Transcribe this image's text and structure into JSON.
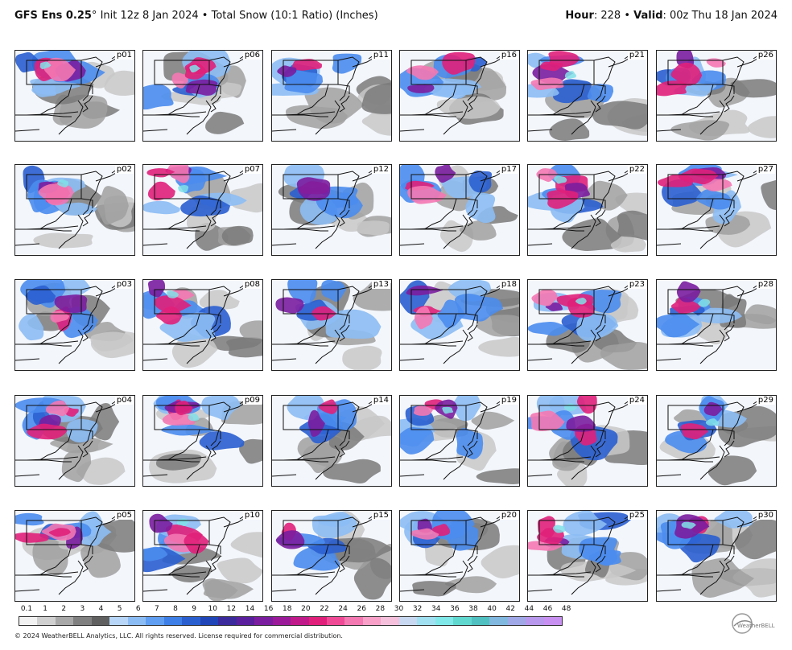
{
  "header": {
    "model": "GFS Ens 0.25",
    "degree": "°",
    "init": "Init 12z 8 Jan 2024",
    "bullet": "•",
    "product": "Total Snow (10:1 Ratio) (Inches)",
    "hour_label": "Hour",
    "hour_value": ": 228",
    "valid_label": "Valid",
    "valid_value": ": 00z Thu 18 Jan 2024"
  },
  "panels": [
    [
      "p01",
      "p06",
      "p11",
      "p16",
      "p21",
      "p26"
    ],
    [
      "p02",
      "p07",
      "p12",
      "p17",
      "p22",
      "p27"
    ],
    [
      "p03",
      "p08",
      "p13",
      "p18",
      "p23",
      "p28"
    ],
    [
      "p04",
      "p09",
      "p14",
      "p19",
      "p24",
      "p29"
    ],
    [
      "p05",
      "p10",
      "p15",
      "p20",
      "p25",
      "p30"
    ]
  ],
  "colorbar": {
    "ticks": [
      "0.1",
      "1",
      "2",
      "3",
      "4",
      "5",
      "6",
      "7",
      "8",
      "9",
      "10",
      "12",
      "14",
      "16",
      "18",
      "20",
      "22",
      "24",
      "26",
      "28",
      "30",
      "32",
      "34",
      "36",
      "38",
      "40",
      "42",
      "44",
      "46",
      "48"
    ],
    "colors": [
      "#f2f2f2",
      "#d0d0d0",
      "#a8a8a8",
      "#808080",
      "#606060",
      "#b8d6f7",
      "#8cbcf4",
      "#5f9ef0",
      "#3d7fe6",
      "#2a5fd0",
      "#1f45b8",
      "#3a2a9c",
      "#5a1f9c",
      "#7a1d9e",
      "#9a1a9a",
      "#c01a8a",
      "#e0207a",
      "#f04a96",
      "#f478b2",
      "#f8a0c8",
      "#f4c0dc",
      "#c8d8f0",
      "#a0e0f0",
      "#80e8e8",
      "#60d8d0",
      "#50c0c0",
      "#80b8e0",
      "#a0a8e8",
      "#b898ec",
      "#c890f0"
    ]
  },
  "copyright": "© 2024 WeatherBELL Analytics, LLC. All rights reserved. License required for commercial distribution.",
  "logo_text": "WeatherBELL"
}
